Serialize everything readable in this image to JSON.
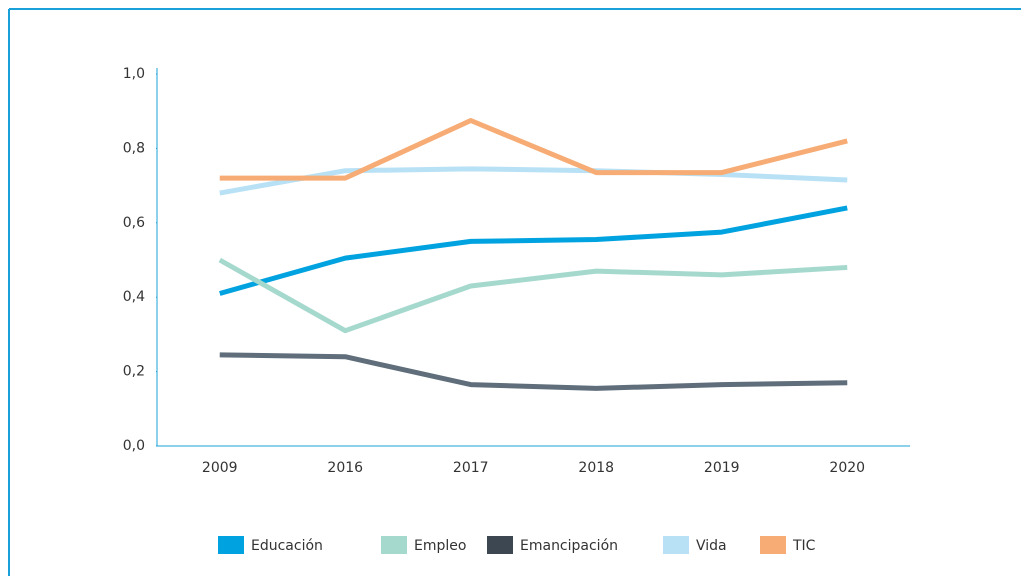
{
  "chart_data": {
    "type": "line",
    "categories": [
      "2009",
      "2016",
      "2017",
      "2018",
      "2019",
      "2020"
    ],
    "series": [
      {
        "name": "Educación",
        "color": "#00a3e0",
        "values": [
          0.41,
          0.505,
          0.55,
          0.555,
          0.575,
          0.64
        ]
      },
      {
        "name": "Empleo",
        "color": "#a6d9cd",
        "values": [
          0.5,
          0.31,
          0.43,
          0.47,
          0.46,
          0.48
        ]
      },
      {
        "name": "Emancipación",
        "color": "#5f6e7a",
        "values": [
          0.245,
          0.24,
          0.165,
          0.155,
          0.165,
          0.17
        ]
      },
      {
        "name": "Vida",
        "color": "#b9e1f5",
        "values": [
          0.68,
          0.74,
          0.745,
          0.74,
          0.73,
          0.715
        ]
      },
      {
        "name": "TIC",
        "color": "#f6ac74",
        "values": [
          0.72,
          0.72,
          0.875,
          0.735,
          0.735,
          0.82
        ]
      }
    ],
    "ylim": [
      0,
      1
    ],
    "yticks": [
      {
        "value": 0,
        "label": "0,0"
      },
      {
        "value": 0.2,
        "label": "0,2"
      },
      {
        "value": 0.4,
        "label": "0,4"
      },
      {
        "value": 0.6,
        "label": "0,6"
      },
      {
        "value": 0.8,
        "label": "0,8"
      },
      {
        "value": 1,
        "label": "1,0"
      }
    ],
    "legend": "bottom"
  }
}
